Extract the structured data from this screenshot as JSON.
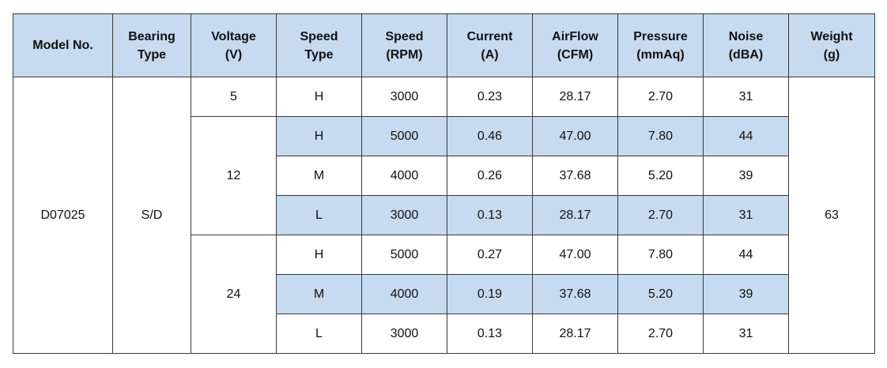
{
  "table": {
    "header": [
      "Model No.",
      "Bearing\nType",
      "Voltage\n(V)",
      "Speed\nType",
      "Speed\n(RPM)",
      "Current\n(A)",
      "AirFlow\n(CFM)",
      "Pressure\n(mmAq)",
      "Noise\n(dBA)",
      "Weight\n(g)"
    ],
    "model": "D07025",
    "bearing": "S/D",
    "weight": "63",
    "groups": [
      {
        "voltage": "5",
        "rows": [
          [
            "H",
            "3000",
            "0.23",
            "28.17",
            "2.70",
            "31"
          ]
        ]
      },
      {
        "voltage": "12",
        "rows": [
          [
            "H",
            "5000",
            "0.46",
            "47.00",
            "7.80",
            "44"
          ],
          [
            "M",
            "4000",
            "0.26",
            "37.68",
            "5.20",
            "39"
          ],
          [
            "L",
            "3000",
            "0.13",
            "28.17",
            "2.70",
            "31"
          ]
        ]
      },
      {
        "voltage": "24",
        "rows": [
          [
            "H",
            "5000",
            "0.27",
            "47.00",
            "7.80",
            "44"
          ],
          [
            "M",
            "4000",
            "0.19",
            "37.68",
            "5.20",
            "39"
          ],
          [
            "L",
            "3000",
            "0.13",
            "28.17",
            "2.70",
            "31"
          ]
        ]
      }
    ]
  }
}
